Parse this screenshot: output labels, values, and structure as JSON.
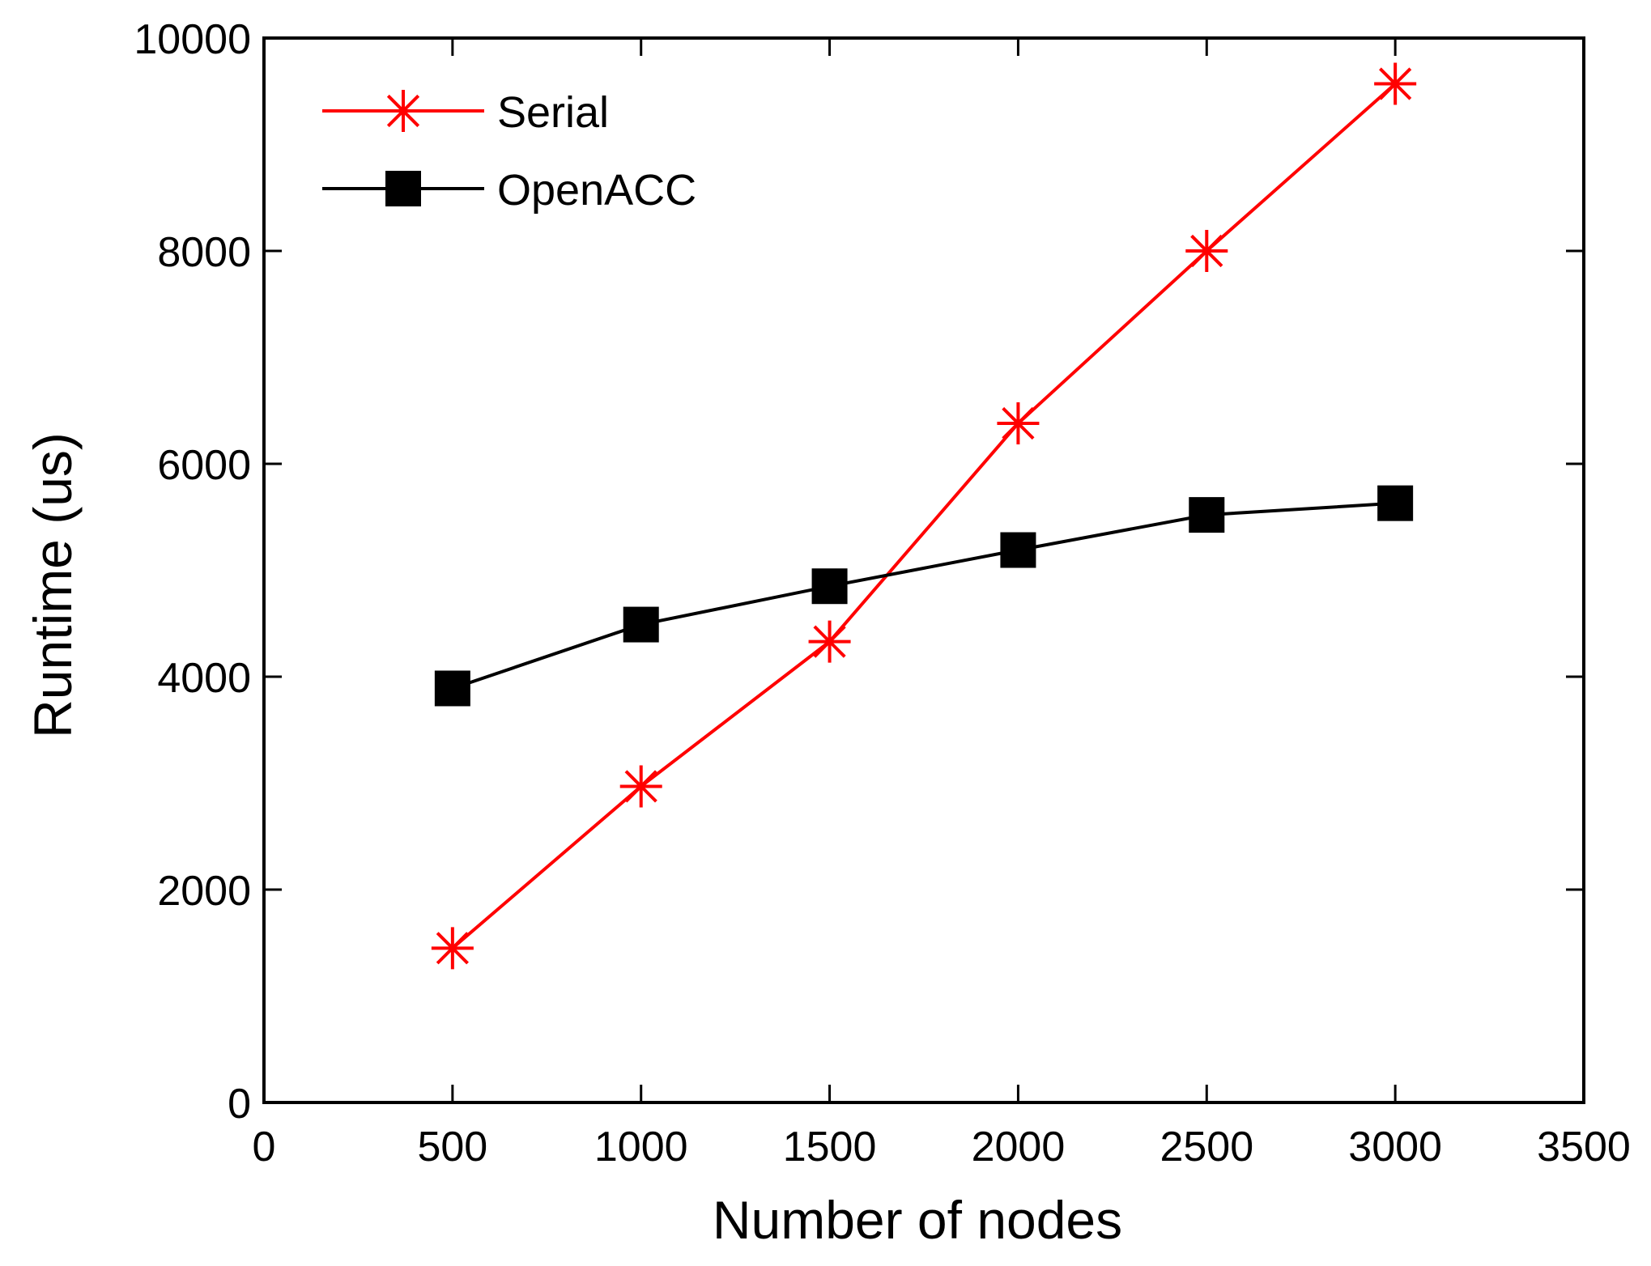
{
  "chart_data": {
    "type": "line",
    "title": "",
    "xlabel": "Number of nodes",
    "ylabel": "Runtime (us)",
    "xlim": [
      0,
      3500
    ],
    "ylim": [
      0,
      10000
    ],
    "xticks": [
      0,
      500,
      1000,
      1500,
      2000,
      2500,
      3000,
      3500
    ],
    "yticks": [
      0,
      2000,
      4000,
      6000,
      8000,
      10000
    ],
    "x": [
      500,
      1000,
      1500,
      2000,
      2500,
      3000
    ],
    "grid": false,
    "legend_position": "top-left",
    "series": [
      {
        "name": "Serial",
        "color": "#ff0000",
        "marker": "asterisk",
        "values": [
          1450,
          2970,
          4330,
          6380,
          8000,
          9570
        ]
      },
      {
        "name": "OpenACC",
        "color": "#000000",
        "marker": "square",
        "values": [
          3890,
          4490,
          4850,
          5190,
          5520,
          5630
        ]
      }
    ]
  }
}
